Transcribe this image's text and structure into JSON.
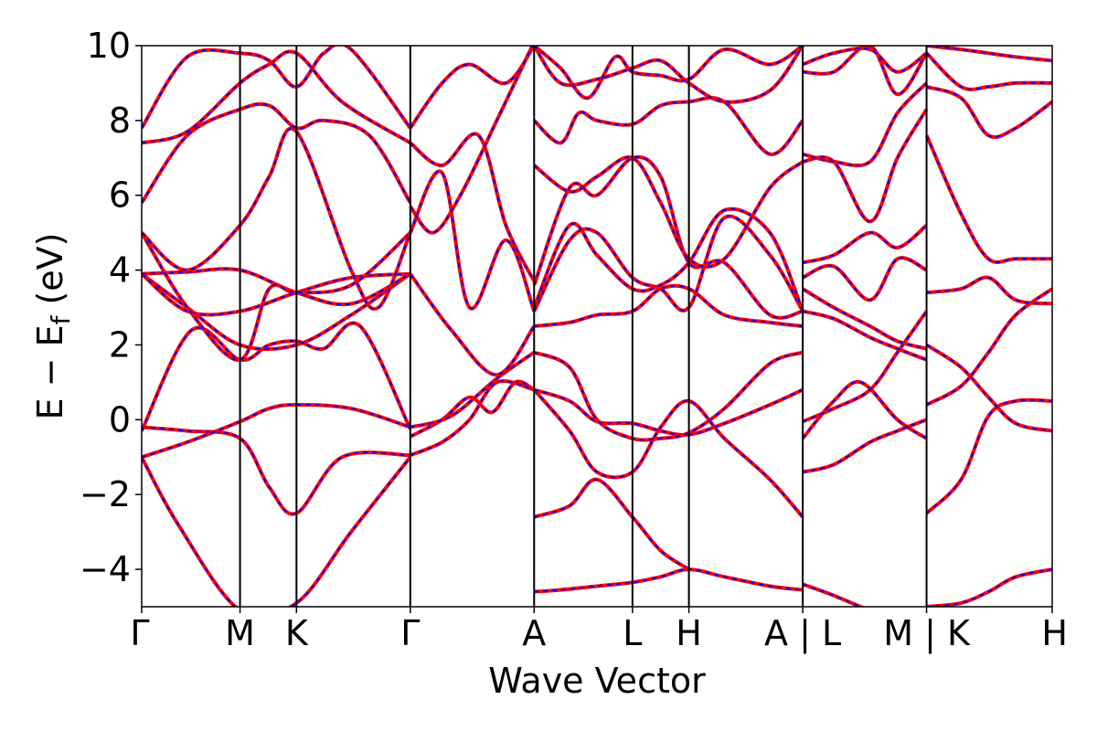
{
  "chart_data": {
    "type": "line",
    "xlabel": "Wave Vector",
    "ylabel_main": "E − E",
    "ylabel_sub": "f",
    "ylabel_unit": " (eV)",
    "ylim": [
      -5,
      10
    ],
    "yticks": [
      -4,
      -2,
      0,
      2,
      4,
      6,
      8,
      10
    ],
    "ytick_labels": [
      "−4",
      "−2",
      "0",
      "2",
      "4",
      "6",
      "8",
      "10"
    ],
    "kpath": [
      {
        "label": "Γ",
        "x": 0.0
      },
      {
        "label": "M",
        "x": 0.108
      },
      {
        "label": "K",
        "x": 0.17
      },
      {
        "label": "Γ",
        "x": 0.295
      },
      {
        "label": "A",
        "x": 0.431
      },
      {
        "label": "L",
        "x": 0.539
      },
      {
        "label": "H",
        "x": 0.601
      },
      {
        "label": "A | L",
        "x": 0.726
      },
      {
        "label": "M | K",
        "x": 0.862
      },
      {
        "label": "H",
        "x": 1.0
      }
    ],
    "xlim": [
      0,
      1
    ],
    "colors": {
      "band_solid": "#ff0000",
      "band_dashed": "#0000ff",
      "kline": "#000000"
    },
    "series": [
      {
        "x": [
          0,
          0.04,
          0.108,
          0.17,
          0.23,
          0.295
        ],
        "y": [
          -1.0,
          -2.8,
          -5.1,
          -4.9,
          -3.0,
          -1.0
        ]
      },
      {
        "x": [
          0,
          0.05,
          0.108,
          0.14,
          0.17,
          0.22,
          0.295
        ],
        "y": [
          -0.2,
          -0.3,
          -0.5,
          -1.8,
          -2.5,
          -1.0,
          -0.95
        ]
      },
      {
        "x": [
          0,
          0.05,
          0.108,
          0.14,
          0.17,
          0.23,
          0.295
        ],
        "y": [
          -1.0,
          -0.6,
          -0.05,
          0.3,
          0.4,
          0.3,
          -0.2
        ]
      },
      {
        "x": [
          0,
          0.055,
          0.108,
          0.14,
          0.17,
          0.2,
          0.24,
          0.295
        ],
        "y": [
          -0.3,
          2.4,
          1.6,
          2.0,
          2.1,
          1.9,
          2.5,
          -0.25
        ]
      },
      {
        "x": [
          0,
          0.05,
          0.108,
          0.17,
          0.23,
          0.295
        ],
        "y": [
          3.9,
          3.0,
          2.0,
          2.0,
          2.8,
          3.9
        ]
      },
      {
        "x": [
          0,
          0.05,
          0.108,
          0.17,
          0.23,
          0.295
        ],
        "y": [
          3.9,
          2.9,
          2.9,
          3.4,
          3.8,
          3.9
        ]
      },
      {
        "x": [
          0,
          0.05,
          0.108,
          0.17,
          0.23,
          0.295
        ],
        "y": [
          3.9,
          3.95,
          4.0,
          3.4,
          3.1,
          3.9
        ]
      },
      {
        "x": [
          0,
          0.05,
          0.108,
          0.14,
          0.17,
          0.23,
          0.295
        ],
        "y": [
          5.0,
          3.0,
          1.6,
          3.5,
          3.4,
          3.6,
          5.0
        ]
      },
      {
        "x": [
          0,
          0.05,
          0.108,
          0.14,
          0.17,
          0.23,
          0.26,
          0.295
        ],
        "y": [
          5.0,
          4.0,
          5.2,
          6.5,
          7.7,
          4.0,
          3.0,
          5.0
        ]
      },
      {
        "x": [
          0,
          0.05,
          0.108,
          0.14,
          0.17,
          0.2,
          0.25,
          0.295
        ],
        "y": [
          5.8,
          7.6,
          8.3,
          8.4,
          7.8,
          8.0,
          7.6,
          5.8
        ]
      },
      {
        "x": [
          0,
          0.05,
          0.108,
          0.14,
          0.17,
          0.22,
          0.295
        ],
        "y": [
          7.4,
          7.7,
          9.0,
          9.5,
          9.8,
          8.5,
          7.4
        ]
      },
      {
        "x": [
          0,
          0.05,
          0.108,
          0.14,
          0.17,
          0.2,
          0.23,
          0.295
        ],
        "y": [
          7.8,
          9.7,
          9.8,
          9.6,
          8.9,
          9.8,
          9.9,
          7.8
        ]
      },
      {
        "x": [
          0.295,
          0.33,
          0.36,
          0.385,
          0.41,
          0.431
        ],
        "y": [
          -0.45,
          0.0,
          0.6,
          0.2,
          1.0,
          0.8
        ]
      },
      {
        "x": [
          0.295,
          0.33,
          0.36,
          0.39,
          0.431
        ],
        "y": [
          -0.95,
          -0.6,
          0.0,
          1.0,
          0.8
        ]
      },
      {
        "x": [
          0.295,
          0.34,
          0.39,
          0.431
        ],
        "y": [
          -0.2,
          0.1,
          1.1,
          1.8
        ]
      },
      {
        "x": [
          0.295,
          0.34,
          0.39,
          0.431
        ],
        "y": [
          3.9,
          2.4,
          1.2,
          2.5
        ]
      },
      {
        "x": [
          0.295,
          0.33,
          0.36,
          0.4,
          0.431
        ],
        "y": [
          5.0,
          6.6,
          3.0,
          4.8,
          2.9
        ]
      },
      {
        "x": [
          0.295,
          0.33,
          0.37,
          0.4,
          0.431
        ],
        "y": [
          7.4,
          6.8,
          7.6,
          5.2,
          3.7
        ]
      },
      {
        "x": [
          0.295,
          0.33,
          0.36,
          0.4,
          0.431
        ],
        "y": [
          7.8,
          9.0,
          9.5,
          9.0,
          10.0
        ]
      },
      {
        "x": [
          0.295,
          0.32,
          0.35,
          0.39,
          0.431
        ],
        "y": [
          5.7,
          5.0,
          6.0,
          8.0,
          10.1
        ]
      },
      {
        "x": [
          0.431,
          0.47,
          0.5,
          0.539,
          0.57,
          0.601
        ],
        "y": [
          -2.6,
          -2.3,
          -1.6,
          -2.6,
          -3.5,
          -4.0
        ]
      },
      {
        "x": [
          0.431,
          0.46,
          0.5,
          0.539,
          0.57,
          0.601,
          0.64,
          0.69,
          0.726
        ],
        "y": [
          -4.6,
          -4.55,
          -4.45,
          -4.35,
          -4.2,
          -4.0,
          -4.2,
          -4.45,
          -4.55
        ]
      },
      {
        "x": [
          0.431,
          0.47,
          0.5,
          0.539,
          0.57,
          0.601,
          0.64,
          0.69,
          0.726
        ],
        "y": [
          0.8,
          -0.3,
          -1.4,
          -1.4,
          -0.2,
          0.5,
          -0.5,
          -1.6,
          -2.6
        ]
      },
      {
        "x": [
          0.431,
          0.47,
          0.5,
          0.539,
          0.57,
          0.601,
          0.64,
          0.69,
          0.726
        ],
        "y": [
          0.8,
          0.5,
          -0.05,
          -0.1,
          -0.3,
          -0.4,
          -0.1,
          0.4,
          0.8
        ]
      },
      {
        "x": [
          0.431,
          0.47,
          0.5,
          0.539,
          0.57,
          0.601,
          0.64,
          0.69,
          0.726
        ],
        "y": [
          1.8,
          1.4,
          0.0,
          -0.5,
          -0.5,
          -0.35,
          0.3,
          1.5,
          1.8
        ]
      },
      {
        "x": [
          0.431,
          0.47,
          0.5,
          0.539,
          0.57,
          0.601,
          0.64,
          0.69,
          0.726
        ],
        "y": [
          2.5,
          2.6,
          2.8,
          2.9,
          3.5,
          3.5,
          2.8,
          2.6,
          2.5
        ]
      },
      {
        "x": [
          0.431,
          0.47,
          0.5,
          0.539,
          0.57,
          0.601,
          0.64,
          0.69,
          0.726
        ],
        "y": [
          2.9,
          4.8,
          5.0,
          3.8,
          3.5,
          3.0,
          5.4,
          4.4,
          2.9
        ]
      },
      {
        "x": [
          0.431,
          0.47,
          0.5,
          0.539,
          0.57,
          0.601,
          0.64,
          0.69,
          0.726
        ],
        "y": [
          3.0,
          5.2,
          4.4,
          3.5,
          3.6,
          4.2,
          5.6,
          5.0,
          2.9
        ]
      },
      {
        "x": [
          0.431,
          0.47,
          0.5,
          0.539,
          0.57,
          0.601,
          0.64,
          0.69,
          0.726
        ],
        "y": [
          3.6,
          6.2,
          6.0,
          7.0,
          6.5,
          4.2,
          4.2,
          2.8,
          2.9
        ]
      },
      {
        "x": [
          0.431,
          0.47,
          0.5,
          0.539,
          0.57,
          0.601,
          0.64,
          0.69,
          0.726
        ],
        "y": [
          6.8,
          6.1,
          6.5,
          7.0,
          5.8,
          4.3,
          4.3,
          6.2,
          6.9
        ]
      },
      {
        "x": [
          0.431,
          0.46,
          0.48,
          0.5,
          0.539,
          0.57,
          0.601,
          0.64,
          0.69,
          0.726
        ],
        "y": [
          8.0,
          7.4,
          8.2,
          8.0,
          7.9,
          8.4,
          8.5,
          8.5,
          7.1,
          8.0
        ]
      },
      {
        "x": [
          0.431,
          0.46,
          0.5,
          0.539,
          0.57,
          0.601,
          0.64,
          0.69,
          0.726
        ],
        "y": [
          10.0,
          9.0,
          9.1,
          9.4,
          9.6,
          9.0,
          8.5,
          8.8,
          10.0
        ]
      },
      {
        "x": [
          0.431,
          0.46,
          0.49,
          0.52,
          0.539,
          0.57,
          0.601,
          0.64,
          0.69,
          0.726
        ],
        "y": [
          10.0,
          9.4,
          8.6,
          9.7,
          9.3,
          9.2,
          9.1,
          9.9,
          9.5,
          10.0
        ]
      },
      {
        "x": [
          0.726,
          0.76,
          0.8,
          0.83,
          0.862
        ],
        "y": [
          -1.4,
          -1.2,
          -0.6,
          -0.3,
          0.0
        ]
      },
      {
        "x": [
          0.726,
          0.76,
          0.79,
          0.83,
          0.862
        ],
        "y": [
          -0.5,
          0.5,
          1.0,
          0.0,
          -0.5
        ]
      },
      {
        "x": [
          0.726,
          0.76,
          0.8,
          0.83,
          0.862
        ],
        "y": [
          -0.05,
          0.3,
          0.8,
          1.8,
          2.9
        ]
      },
      {
        "x": [
          0.726,
          0.76,
          0.8,
          0.83,
          0.862
        ],
        "y": [
          -4.4,
          -4.7,
          -5.1,
          -5.3,
          -5.5
        ]
      },
      {
        "x": [
          0.726,
          0.76,
          0.8,
          0.83,
          0.862
        ],
        "y": [
          2.9,
          2.7,
          2.2,
          1.9,
          1.6
        ]
      },
      {
        "x": [
          0.726,
          0.76,
          0.8,
          0.83,
          0.862
        ],
        "y": [
          3.5,
          3.0,
          2.5,
          2.1,
          1.9
        ]
      },
      {
        "x": [
          0.726,
          0.76,
          0.8,
          0.83,
          0.862
        ],
        "y": [
          3.8,
          4.1,
          3.2,
          4.3,
          4.0
        ]
      },
      {
        "x": [
          0.726,
          0.76,
          0.8,
          0.83,
          0.862
        ],
        "y": [
          4.2,
          4.4,
          5.0,
          4.6,
          5.2
        ]
      },
      {
        "x": [
          0.726,
          0.76,
          0.8,
          0.83,
          0.862
        ],
        "y": [
          6.9,
          6.9,
          5.3,
          7.0,
          8.3
        ]
      },
      {
        "x": [
          0.726,
          0.76,
          0.8,
          0.83,
          0.862
        ],
        "y": [
          7.1,
          6.9,
          6.9,
          8.2,
          9.0
        ]
      },
      {
        "x": [
          0.726,
          0.76,
          0.8,
          0.83,
          0.862
        ],
        "y": [
          9.3,
          9.3,
          10.0,
          8.7,
          9.8
        ]
      },
      {
        "x": [
          0.726,
          0.76,
          0.8,
          0.83,
          0.862
        ],
        "y": [
          9.5,
          9.8,
          9.9,
          9.3,
          9.8
        ]
      },
      {
        "x": [
          0.862,
          0.9,
          0.93,
          0.96,
          1.0
        ],
        "y": [
          -5.0,
          -4.9,
          -4.6,
          -4.2,
          -4.0
        ]
      },
      {
        "x": [
          0.862,
          0.9,
          0.93,
          0.96,
          1.0
        ],
        "y": [
          -2.5,
          -1.6,
          0.1,
          0.5,
          0.5
        ]
      },
      {
        "x": [
          0.862,
          0.9,
          0.93,
          0.96,
          1.0
        ],
        "y": [
          0.4,
          0.9,
          1.8,
          2.8,
          3.5
        ]
      },
      {
        "x": [
          0.862,
          0.9,
          0.93,
          0.96,
          1.0
        ],
        "y": [
          2.0,
          1.4,
          0.6,
          -0.1,
          -0.3
        ]
      },
      {
        "x": [
          0.862,
          0.9,
          0.93,
          0.96,
          1.0
        ],
        "y": [
          3.4,
          3.5,
          3.8,
          3.2,
          3.1
        ]
      },
      {
        "x": [
          0.862,
          0.9,
          0.93,
          0.96,
          1.0
        ],
        "y": [
          7.6,
          5.5,
          4.3,
          4.3,
          4.3
        ]
      },
      {
        "x": [
          0.862,
          0.9,
          0.93,
          0.96,
          1.0
        ],
        "y": [
          8.9,
          8.6,
          7.6,
          7.8,
          8.5
        ]
      },
      {
        "x": [
          0.862,
          0.9,
          0.93,
          0.96,
          1.0
        ],
        "y": [
          9.8,
          8.9,
          8.9,
          9.0,
          9.0
        ]
      },
      {
        "x": [
          0.862,
          0.9,
          0.93,
          0.96,
          1.0
        ],
        "y": [
          10.0,
          9.9,
          9.8,
          9.7,
          9.6
        ]
      }
    ]
  }
}
